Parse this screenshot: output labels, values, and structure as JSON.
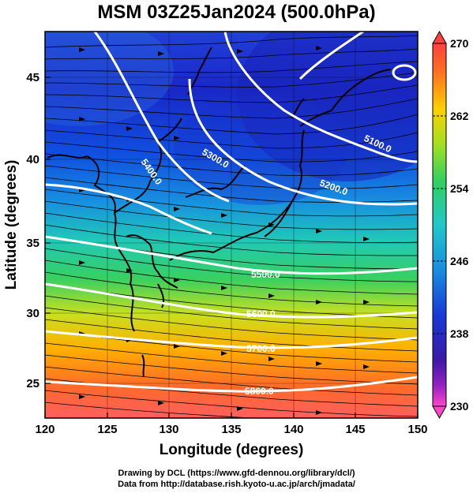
{
  "title": "MSM 03Z25Jan2024 (500.0hPa)",
  "x_axis": {
    "label": "Longitude (degrees)",
    "ticks": [
      "120",
      "125",
      "130",
      "135",
      "140",
      "145",
      "150"
    ]
  },
  "y_axis": {
    "label": "Latitude  (degrees)",
    "ticks": [
      "25",
      "30",
      "35",
      "40",
      "45"
    ]
  },
  "colorbar": {
    "ticks": [
      "270",
      "262",
      "254",
      "246",
      "238",
      "230"
    ]
  },
  "contours": [
    {
      "label": "5100.0"
    },
    {
      "label": "5200.0"
    },
    {
      "label": "5300.0"
    },
    {
      "label": "5400.0"
    },
    {
      "label": "5500.0"
    },
    {
      "label": "5600.0"
    },
    {
      "label": "5700.0"
    },
    {
      "label": "5800.0"
    }
  ],
  "credits": [
    "Drawing by DCL (https://www.gfd-dennou.org/library/dcl/)",
    "Data from http://database.rish.kyoto-u.ac.jp/arch/jmadata/"
  ],
  "colors": {
    "field_high": "#ff5555",
    "field_mid": "#3fd070",
    "field_low": "#1c2bd8",
    "contour": "#ffffff",
    "vector": "#000000"
  }
}
